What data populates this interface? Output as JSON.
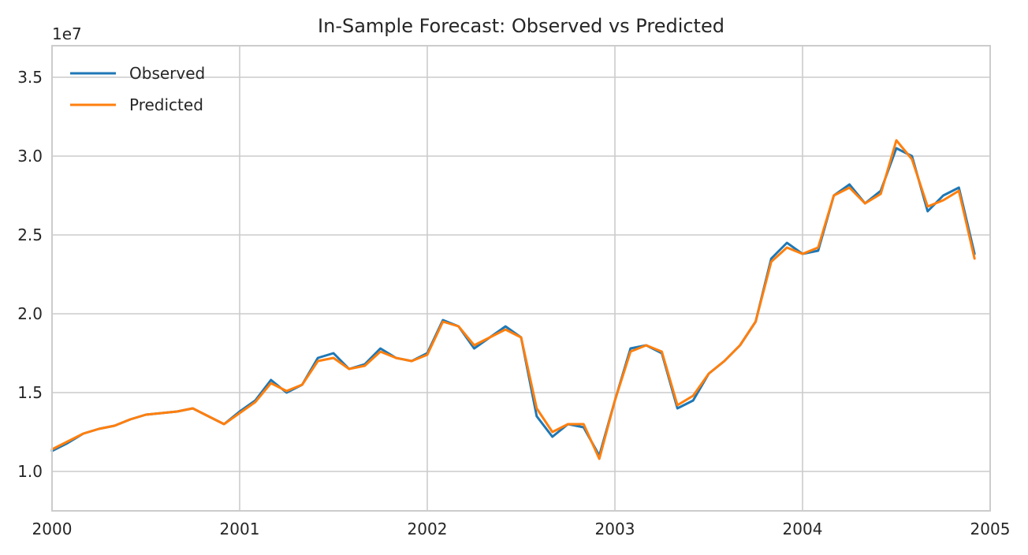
{
  "chart_data": {
    "type": "line",
    "title": "In-Sample Forecast: Observed vs Predicted",
    "xlabel": "",
    "ylabel": "",
    "y_offset_label": "1e7",
    "xlim": [
      "2000",
      "2005"
    ],
    "ylim": [
      0.75,
      3.7
    ],
    "x_ticks": [
      "2000",
      "2001",
      "2002",
      "2003",
      "2004",
      "2005"
    ],
    "y_ticks": [
      1.0,
      1.5,
      2.0,
      2.5,
      3.0,
      3.5
    ],
    "y_tick_labels": [
      "1.0",
      "1.5",
      "2.0",
      "2.5",
      "3.0",
      "3.5"
    ],
    "grid": true,
    "legend_position": "top-left",
    "x": [
      "2000-01",
      "2000-02",
      "2000-03",
      "2000-04",
      "2000-05",
      "2000-06",
      "2000-07",
      "2000-08",
      "2000-09",
      "2000-10",
      "2000-11",
      "2000-12",
      "2001-01",
      "2001-02",
      "2001-03",
      "2001-04",
      "2001-05",
      "2001-06",
      "2001-07",
      "2001-08",
      "2001-09",
      "2001-10",
      "2001-11",
      "2001-12",
      "2002-01",
      "2002-02",
      "2002-03",
      "2002-04",
      "2002-05",
      "2002-06",
      "2002-07",
      "2002-08",
      "2002-09",
      "2002-10",
      "2002-11",
      "2002-12",
      "2003-01",
      "2003-02",
      "2003-03",
      "2003-04",
      "2003-05",
      "2003-06",
      "2003-07",
      "2003-08",
      "2003-09",
      "2003-10",
      "2003-11",
      "2003-12",
      "2004-01",
      "2004-02",
      "2004-03",
      "2004-04",
      "2004-05",
      "2004-06",
      "2004-07",
      "2004-08",
      "2004-09",
      "2004-10",
      "2004-11",
      "2004-12"
    ],
    "series": [
      {
        "name": "Observed",
        "color": "#1f77b4",
        "values": [
          1.13,
          1.18,
          1.24,
          1.27,
          1.29,
          1.33,
          1.36,
          1.37,
          1.38,
          1.4,
          1.35,
          1.3,
          1.38,
          1.45,
          1.58,
          1.5,
          1.55,
          1.72,
          1.75,
          1.65,
          1.68,
          1.78,
          1.72,
          1.7,
          1.75,
          1.96,
          1.92,
          1.78,
          1.85,
          1.92,
          1.85,
          1.35,
          1.22,
          1.3,
          1.28,
          1.1,
          1.45,
          1.78,
          1.8,
          1.75,
          1.4,
          1.45,
          1.62,
          1.7,
          1.8,
          1.95,
          2.35,
          2.45,
          2.38,
          2.4,
          2.75,
          2.82,
          2.7,
          2.78,
          3.05,
          3.0,
          2.65,
          2.75,
          2.8,
          2.38
        ]
      },
      {
        "name": "Predicted",
        "color": "#ff7f0e",
        "values": [
          1.14,
          1.19,
          1.24,
          1.27,
          1.29,
          1.33,
          1.36,
          1.37,
          1.38,
          1.4,
          1.35,
          1.3,
          1.37,
          1.44,
          1.56,
          1.51,
          1.55,
          1.7,
          1.72,
          1.65,
          1.67,
          1.76,
          1.72,
          1.7,
          1.74,
          1.95,
          1.92,
          1.8,
          1.85,
          1.9,
          1.85,
          1.4,
          1.25,
          1.3,
          1.3,
          1.08,
          1.45,
          1.76,
          1.8,
          1.76,
          1.42,
          1.48,
          1.62,
          1.7,
          1.8,
          1.95,
          2.33,
          2.42,
          2.38,
          2.42,
          2.75,
          2.8,
          2.7,
          2.76,
          3.1,
          2.98,
          2.68,
          2.72,
          2.78,
          2.35
        ]
      }
    ]
  }
}
